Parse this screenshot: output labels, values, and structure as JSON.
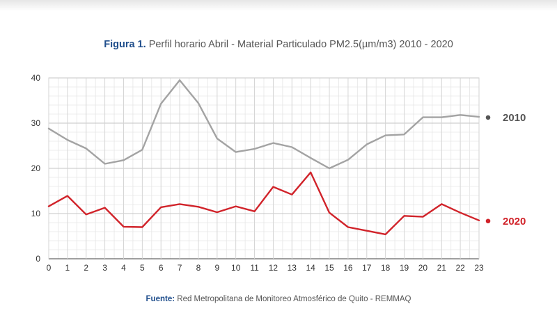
{
  "header": {
    "title_lead": "Figura 1.",
    "title_text": "Perfil horario Abril - Material Particulado PM2.5(µm/m3) 2010 - 2020"
  },
  "footer": {
    "source_lead": "Fuente:",
    "source_text": "Red Metropolitana de Monitoreo Atmosférico de Quito - REMMAQ"
  },
  "chart_data": {
    "type": "line",
    "title": "Figura 1. Perfil horario Abril - Material Particulado PM2.5(µm/m3) 2010 - 2020",
    "xlabel": "",
    "ylabel": "",
    "x": [
      0,
      1,
      2,
      3,
      4,
      5,
      6,
      7,
      8,
      9,
      10,
      11,
      12,
      13,
      14,
      15,
      16,
      17,
      18,
      19,
      20,
      21,
      22,
      23
    ],
    "xlim": [
      0,
      23
    ],
    "ylim": [
      0,
      40
    ],
    "yticks": [
      0,
      10,
      20,
      30,
      40
    ],
    "grid": true,
    "legend_placement": "right",
    "series": [
      {
        "name": "2010",
        "color": "#a3a3a3",
        "legend_color": "#555555",
        "values": [
          28.8,
          26.3,
          24.4,
          21.0,
          21.8,
          24.1,
          34.3,
          39.5,
          34.4,
          26.6,
          23.6,
          24.3,
          25.6,
          24.7,
          22.3,
          20.0,
          21.9,
          25.3,
          27.3,
          27.5,
          31.3,
          31.3,
          31.8,
          31.4
        ]
      },
      {
        "name": "2020",
        "color": "#d1232a",
        "legend_color": "#d1232a",
        "values": [
          11.6,
          13.9,
          9.8,
          11.3,
          7.1,
          7.0,
          11.4,
          12.1,
          11.5,
          10.3,
          11.6,
          10.5,
          15.9,
          14.2,
          19.1,
          10.2,
          7.0,
          6.2,
          5.4,
          9.5,
          9.3,
          12.1,
          10.2,
          8.5
        ]
      }
    ]
  }
}
